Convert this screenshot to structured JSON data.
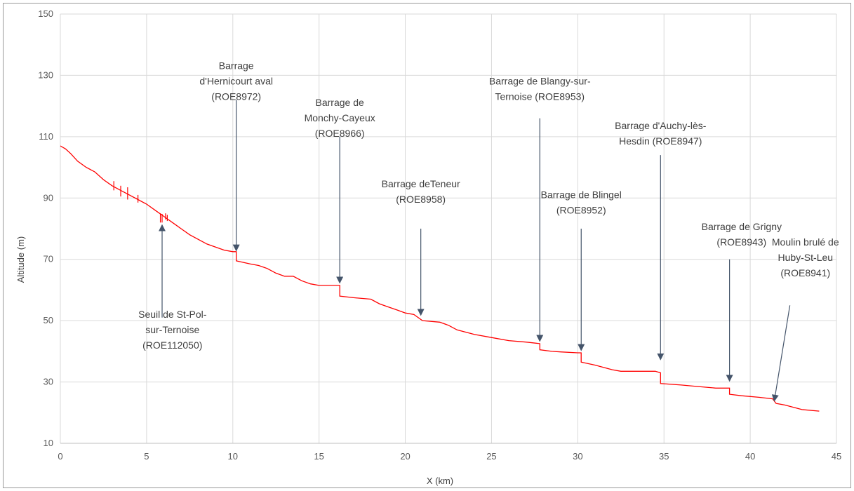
{
  "chart_data": {
    "type": "line",
    "title": "",
    "xlabel": "X (km)",
    "ylabel": "Altitude (m)",
    "xlim": [
      0,
      45
    ],
    "ylim": [
      10,
      150
    ],
    "xticks": [
      0,
      5,
      10,
      15,
      20,
      25,
      30,
      35,
      40,
      45
    ],
    "yticks": [
      10,
      30,
      50,
      70,
      90,
      110,
      130,
      150
    ],
    "grid": true,
    "series": [
      {
        "color": "#ff0000",
        "points": [
          [
            0,
            107
          ],
          [
            0.3,
            106
          ],
          [
            0.6,
            104.5
          ],
          [
            1.0,
            102
          ],
          [
            1.5,
            100
          ],
          [
            2.0,
            98.5
          ],
          [
            2.5,
            96
          ],
          [
            3.0,
            94
          ],
          [
            3.5,
            92.5
          ],
          [
            4.0,
            91
          ],
          [
            4.5,
            89.5
          ],
          [
            5.0,
            88
          ],
          [
            5.5,
            86
          ],
          [
            6.0,
            84
          ],
          [
            6.5,
            82
          ],
          [
            7.0,
            80
          ],
          [
            7.5,
            78
          ],
          [
            8.0,
            76.5
          ],
          [
            8.5,
            75
          ],
          [
            9.0,
            74
          ],
          [
            9.5,
            73
          ],
          [
            10.0,
            72.5
          ],
          [
            10.2,
            72.5
          ],
          [
            10.2,
            69.5
          ],
          [
            11.0,
            68.5
          ],
          [
            11.5,
            68
          ],
          [
            12.0,
            67
          ],
          [
            12.5,
            65.5
          ],
          [
            13.0,
            64.5
          ],
          [
            13.5,
            64.5
          ],
          [
            14.0,
            63
          ],
          [
            14.5,
            62
          ],
          [
            15.0,
            61.5
          ],
          [
            16.0,
            61.5
          ],
          [
            16.2,
            61.5
          ],
          [
            16.2,
            58
          ],
          [
            17.0,
            57.5
          ],
          [
            18.0,
            57
          ],
          [
            18.5,
            55.5
          ],
          [
            19.0,
            54.5
          ],
          [
            19.5,
            53.5
          ],
          [
            20.0,
            52.5
          ],
          [
            20.5,
            52
          ],
          [
            21.0,
            50
          ],
          [
            22.0,
            49.5
          ],
          [
            22.5,
            48.5
          ],
          [
            23.0,
            47
          ],
          [
            24.0,
            45.5
          ],
          [
            25.0,
            44.5
          ],
          [
            26.0,
            43.5
          ],
          [
            27.0,
            43
          ],
          [
            27.8,
            42.5
          ],
          [
            27.8,
            40.5
          ],
          [
            28.5,
            40
          ],
          [
            29.0,
            39.8
          ],
          [
            30.0,
            39.5
          ],
          [
            30.2,
            39.5
          ],
          [
            30.2,
            36.5
          ],
          [
            31.0,
            35.5
          ],
          [
            32.0,
            34
          ],
          [
            32.5,
            33.5
          ],
          [
            33.5,
            33.5
          ],
          [
            34.5,
            33.5
          ],
          [
            34.8,
            33
          ],
          [
            34.8,
            29.5
          ],
          [
            36.0,
            29
          ],
          [
            37.0,
            28.5
          ],
          [
            38.0,
            28
          ],
          [
            38.8,
            28
          ],
          [
            38.8,
            26
          ],
          [
            39.5,
            25.5
          ],
          [
            40.5,
            25
          ],
          [
            41.3,
            24.5
          ],
          [
            41.5,
            23
          ],
          [
            42.0,
            22.5
          ],
          [
            43.0,
            21
          ],
          [
            44.0,
            20.5
          ]
        ],
        "spikes": [
          [
            3.1,
            92.5,
            95.5
          ],
          [
            3.5,
            90.5,
            94
          ],
          [
            3.9,
            89.5,
            93.5
          ],
          [
            4.5,
            88.5,
            91
          ],
          [
            5.8,
            82,
            85
          ],
          [
            5.9,
            82,
            84.8
          ],
          [
            6.1,
            83,
            85
          ],
          [
            6.2,
            82.5,
            84.5
          ]
        ]
      }
    ],
    "annotations": [
      {
        "id": "seuil-st-pol",
        "lines": [
          "Seuil de St-Pol-",
          "sur-Ternoise",
          "(ROE112050)"
        ],
        "text_x": 6.5,
        "text_y": 51,
        "arrow_from": [
          5.9,
          51
        ],
        "arrow_to": [
          5.9,
          81
        ]
      },
      {
        "id": "hernicourt",
        "lines": [
          "Barrage",
          "d'Hernicourt aval",
          "(ROE8972)"
        ],
        "text_x": 10.2,
        "text_y": 132,
        "arrow_from": [
          10.2,
          122
        ],
        "arrow_to": [
          10.2,
          73
        ]
      },
      {
        "id": "monchy-cayeux",
        "lines": [
          "Barrage de",
          "Monchy-Cayeux",
          "(ROE8966)"
        ],
        "text_x": 16.2,
        "text_y": 120,
        "arrow_from": [
          16.2,
          110
        ],
        "arrow_to": [
          16.2,
          62.5
        ]
      },
      {
        "id": "teneur",
        "lines": [
          "Barrage deTeneur",
          "(ROE8958)"
        ],
        "text_x": 20.9,
        "text_y": 93.5,
        "arrow_from": [
          20.9,
          80
        ],
        "arrow_to": [
          20.9,
          52
        ]
      },
      {
        "id": "blangy",
        "lines": [
          "Barrage de Blangy-sur-",
          "Ternoise (ROE8953)"
        ],
        "text_x": 27.8,
        "text_y": 127,
        "arrow_from": [
          27.8,
          116
        ],
        "arrow_to": [
          27.8,
          43.5
        ]
      },
      {
        "id": "blingel",
        "lines": [
          "Barrage de Blingel",
          "(ROE8952)"
        ],
        "text_x": 30.2,
        "text_y": 90,
        "arrow_from": [
          30.2,
          80
        ],
        "arrow_to": [
          30.2,
          40.5
        ]
      },
      {
        "id": "auchy",
        "lines": [
          "Barrage d'Auchy-lès-",
          "Hesdin (ROE8947)"
        ],
        "text_x": 34.8,
        "text_y": 112.5,
        "arrow_from": [
          34.8,
          104
        ],
        "arrow_to": [
          34.8,
          37.5
        ]
      },
      {
        "id": "grigny",
        "lines": [
          "Barrage de Grigny",
          "(ROE8943)"
        ],
        "text_x": 39.5,
        "text_y": 79.5,
        "arrow_from": [
          38.8,
          70
        ],
        "arrow_to": [
          38.8,
          30.5
        ]
      },
      {
        "id": "moulin-huby",
        "lines": [
          "Moulin brulé de",
          "Huby-St-Leu",
          "(ROE8941)"
        ],
        "text_x": 43.2,
        "text_y": 74.5,
        "arrow_from": [
          42.3,
          55
        ],
        "arrow_to": [
          41.4,
          24
        ]
      }
    ]
  }
}
